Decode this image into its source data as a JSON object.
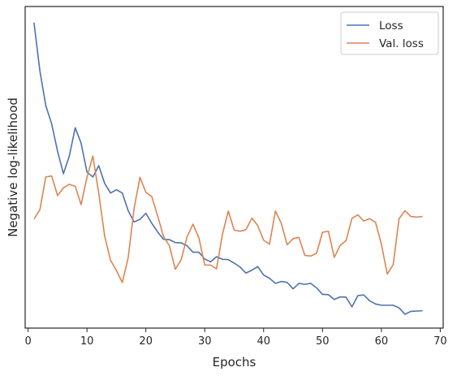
{
  "chart_data": {
    "type": "line",
    "xlabel": "Epochs",
    "ylabel": "Negative log-likelihood",
    "xlim": [
      -0.5,
      70.5
    ],
    "ylim": [
      0,
      100
    ],
    "xticks": [
      0,
      10,
      20,
      30,
      40,
      50,
      60,
      70
    ],
    "yticks_labeled": false,
    "grid": false,
    "legend": {
      "placement": "top-right"
    },
    "colors": {
      "Loss": "#4c72b0",
      "Val. loss": "#dd8452",
      "axes": "#262626"
    },
    "x": [
      1,
      2,
      3,
      4,
      5,
      6,
      7,
      8,
      9,
      10,
      11,
      12,
      13,
      14,
      15,
      16,
      17,
      18,
      19,
      20,
      21,
      22,
      23,
      24,
      25,
      26,
      27,
      28,
      29,
      30,
      31,
      32,
      33,
      34,
      35,
      36,
      37,
      38,
      39,
      40,
      41,
      42,
      43,
      44,
      45,
      46,
      47,
      48,
      49,
      50,
      51,
      52,
      53,
      54,
      55,
      56,
      57,
      58,
      59,
      60,
      61,
      62,
      63,
      64,
      65,
      66,
      67
    ],
    "series": [
      {
        "name": "Loss",
        "values": [
          95,
          80,
          69.2,
          63.5,
          55,
          48,
          53.5,
          62.3,
          57.5,
          48.5,
          47,
          50.5,
          45,
          42,
          43,
          42,
          36.5,
          33,
          33.8,
          35.7,
          32.6,
          29.9,
          27.6,
          27.5,
          26.6,
          26.5,
          25.6,
          23.6,
          23.6,
          21.5,
          20.6,
          22.2,
          21.4,
          21.3,
          20.2,
          19,
          17.1,
          18,
          19.1,
          16.5,
          15.5,
          13.9,
          14.5,
          14.2,
          12.2,
          13.9,
          13.6,
          13.9,
          12.5,
          10.5,
          10.4,
          8.9,
          9.7,
          9.6,
          6.6,
          10.1,
          10.3,
          8.5,
          7.5,
          7.1,
          7.1,
          7.1,
          6.3,
          4.3,
          5.2,
          5.3,
          5.4
        ]
      },
      {
        "name": "Val. loss",
        "values": [
          33.9,
          36.8,
          47,
          47.3,
          41.2,
          43.6,
          44.7,
          44.1,
          38.4,
          46.9,
          53.5,
          41.9,
          28.6,
          21.1,
          17.9,
          14.2,
          21.9,
          37.2,
          46.9,
          42.2,
          40.9,
          34.9,
          28.5,
          25.6,
          18.3,
          21.3,
          28.4,
          32.3,
          28.1,
          19.6,
          19.6,
          18.4,
          29.1,
          36.4,
          30.5,
          30.1,
          30.6,
          34.2,
          31.9,
          27.3,
          26.1,
          36.4,
          32.6,
          25.9,
          27.8,
          28.2,
          22.6,
          22.4,
          23.3,
          29.8,
          30.1,
          22,
          25.7,
          27.2,
          34.1,
          35.2,
          33.3,
          34,
          32.9,
          26.1,
          16.8,
          19.7,
          34,
          36.5,
          34.7,
          34.5,
          34.7
        ]
      }
    ]
  }
}
